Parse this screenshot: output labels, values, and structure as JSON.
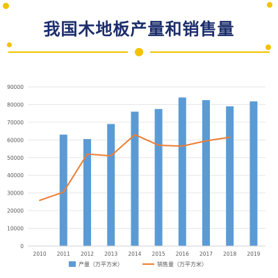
{
  "title": "我国木地板产量和销售量",
  "colors": {
    "title": "#1b2d6b",
    "decor_gold": "#f2c200",
    "bar": "#5b9bd5",
    "line": "#ed7d31",
    "grid": "#e6e6e6",
    "tick": "#595959"
  },
  "chart_data": {
    "type": "bar",
    "title": "",
    "xlabel": "",
    "ylabel": "",
    "categories": [
      "2010",
      "2011",
      "2012",
      "2013",
      "2014",
      "2015",
      "2016",
      "2017",
      "2018",
      "2019"
    ],
    "ylim": [
      0,
      90000
    ],
    "yticks": [
      "0",
      "10000",
      "20000",
      "30000",
      "40000",
      "50000",
      "60000",
      "70000",
      "80000",
      "90000"
    ],
    "grid": true,
    "legend_position": "bottom",
    "series": [
      {
        "name": "产量（万平方米）",
        "type": "bar",
        "values": [
          null,
          63000,
          60500,
          69000,
          76000,
          77500,
          84000,
          82500,
          79000,
          81800
        ]
      },
      {
        "name": "销售量（万平方米）",
        "type": "line",
        "values": [
          25800,
          30500,
          52000,
          51000,
          63000,
          57000,
          56500,
          59500,
          61500,
          null
        ]
      }
    ]
  }
}
